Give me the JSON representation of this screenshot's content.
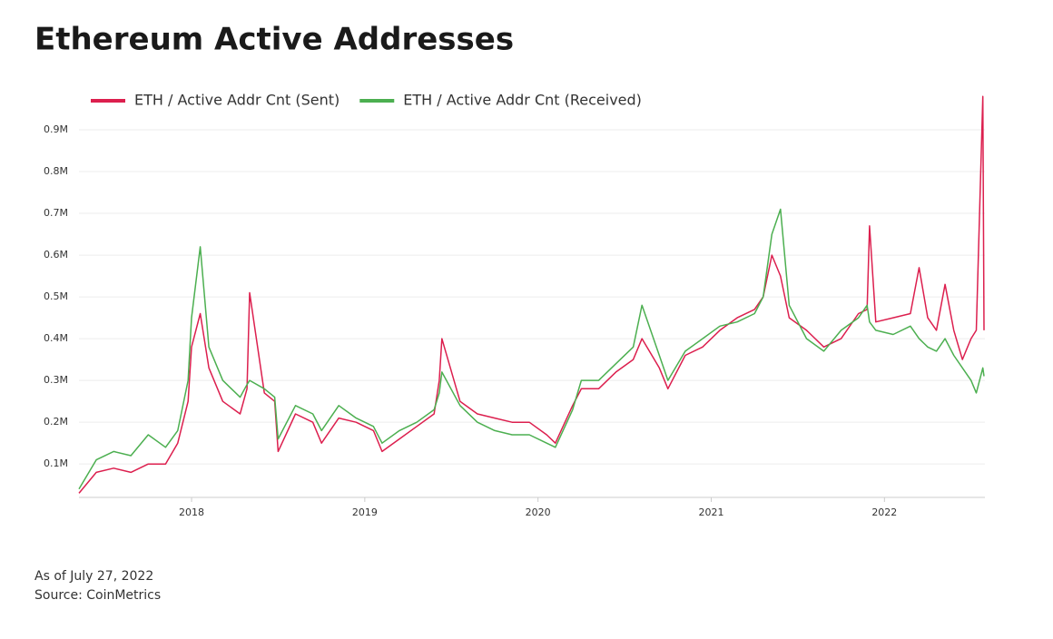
{
  "chart_data": {
    "type": "line",
    "title": "Ethereum Active Addresses",
    "notes": [
      "As of July 27, 2022",
      "Source: CoinMetrics"
    ],
    "x": [
      2017.35,
      2017.45,
      2017.55,
      2017.65,
      2017.75,
      2017.85,
      2017.92,
      2017.98,
      2018.0,
      2018.05,
      2018.1,
      2018.18,
      2018.28,
      2018.32,
      2018.335,
      2018.42,
      2018.48,
      2018.5,
      2018.6,
      2018.7,
      2018.75,
      2018.85,
      2018.95,
      2019.05,
      2019.1,
      2019.2,
      2019.3,
      2019.4,
      2019.43,
      2019.445,
      2019.55,
      2019.65,
      2019.75,
      2019.85,
      2019.95,
      2020.05,
      2020.1,
      2020.2,
      2020.25,
      2020.35,
      2020.45,
      2020.55,
      2020.6,
      2020.7,
      2020.75,
      2020.85,
      2020.95,
      2021.05,
      2021.15,
      2021.25,
      2021.3,
      2021.35,
      2021.4,
      2021.45,
      2021.55,
      2021.65,
      2021.75,
      2021.85,
      2021.9,
      2021.914,
      2021.95,
      2022.05,
      2022.15,
      2022.2,
      2022.25,
      2022.3,
      2022.35,
      2022.4,
      2022.45,
      2022.5,
      2022.53,
      2022.568,
      2022.575
    ],
    "series": [
      {
        "name": "ETH / Active Addr Cnt (Sent)",
        "color": "#dc1f4e",
        "values": [
          0.03,
          0.08,
          0.09,
          0.08,
          0.1,
          0.1,
          0.15,
          0.25,
          0.38,
          0.46,
          0.33,
          0.25,
          0.22,
          0.28,
          0.51,
          0.27,
          0.25,
          0.13,
          0.22,
          0.2,
          0.15,
          0.21,
          0.2,
          0.18,
          0.13,
          0.16,
          0.19,
          0.22,
          0.3,
          0.4,
          0.25,
          0.22,
          0.21,
          0.2,
          0.2,
          0.17,
          0.15,
          0.24,
          0.28,
          0.28,
          0.32,
          0.35,
          0.4,
          0.33,
          0.28,
          0.36,
          0.38,
          0.42,
          0.45,
          0.47,
          0.5,
          0.6,
          0.55,
          0.45,
          0.42,
          0.38,
          0.4,
          0.46,
          0.47,
          0.67,
          0.44,
          0.45,
          0.46,
          0.57,
          0.45,
          0.42,
          0.53,
          0.42,
          0.35,
          0.4,
          0.42,
          0.98,
          0.42
        ]
      },
      {
        "name": "ETH / Active Addr Cnt (Received)",
        "color": "#4caf50",
        "values": [
          0.04,
          0.11,
          0.13,
          0.12,
          0.17,
          0.14,
          0.18,
          0.3,
          0.45,
          0.62,
          0.38,
          0.3,
          0.26,
          0.29,
          0.3,
          0.28,
          0.26,
          0.16,
          0.24,
          0.22,
          0.18,
          0.24,
          0.21,
          0.19,
          0.15,
          0.18,
          0.2,
          0.23,
          0.27,
          0.32,
          0.24,
          0.2,
          0.18,
          0.17,
          0.17,
          0.15,
          0.14,
          0.23,
          0.3,
          0.3,
          0.34,
          0.38,
          0.48,
          0.36,
          0.3,
          0.37,
          0.4,
          0.43,
          0.44,
          0.46,
          0.5,
          0.65,
          0.71,
          0.48,
          0.4,
          0.37,
          0.42,
          0.45,
          0.48,
          0.44,
          0.42,
          0.41,
          0.43,
          0.4,
          0.38,
          0.37,
          0.4,
          0.36,
          0.33,
          0.3,
          0.27,
          0.33,
          0.31
        ]
      }
    ],
    "xlim": [
      2017.35,
      2022.58
    ],
    "xticks": [
      2018,
      2019,
      2020,
      2021,
      2022
    ],
    "ylim": [
      0.02,
      1.0
    ],
    "yticks": [
      {
        "value": 0.1,
        "label": "0.1M"
      },
      {
        "value": 0.2,
        "label": "0.2M"
      },
      {
        "value": 0.3,
        "label": "0.3M"
      },
      {
        "value": 0.4,
        "label": "0.4M"
      },
      {
        "value": 0.5,
        "label": "0.5M"
      },
      {
        "value": 0.6,
        "label": "0.6M"
      },
      {
        "value": 0.7,
        "label": "0.7M"
      },
      {
        "value": 0.8,
        "label": "0.8M"
      },
      {
        "value": 0.9,
        "label": "0.9M"
      }
    ],
    "grid": true,
    "legend": "top-left"
  }
}
